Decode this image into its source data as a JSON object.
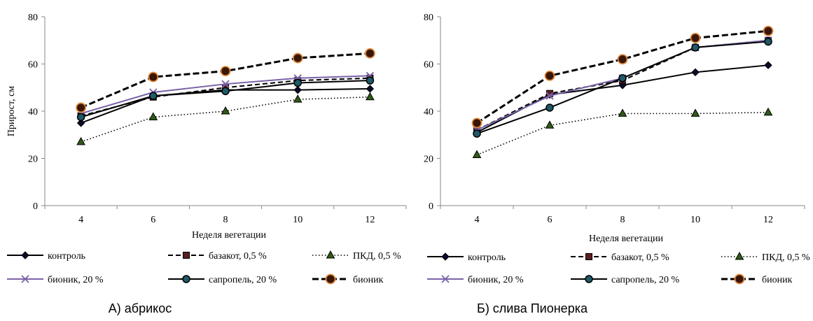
{
  "chart_data": [
    {
      "type": "line",
      "caption": "А) абрикос",
      "xlabel": "Неделя вегетации",
      "ylabel": "Прирост, см",
      "x": [
        4,
        6,
        8,
        10,
        12
      ],
      "ylim": [
        0,
        80
      ],
      "yticks": [
        0,
        20,
        40,
        60,
        80
      ],
      "grid": false,
      "legend": "bottom",
      "series": [
        {
          "name": "контроль",
          "values": [
            35,
            46.5,
            49,
            49,
            49.5
          ],
          "color": "#000000",
          "dash": "solid",
          "marker": "diamond"
        },
        {
          "name": "базакот, 0,5 %",
          "values": [
            38,
            46,
            50,
            53,
            54
          ],
          "color": "#000000",
          "dash": "dash",
          "marker": "square"
        },
        {
          "name": "ПКД, 0,5 %",
          "values": [
            27,
            37.5,
            40,
            45,
            46
          ],
          "color": "#000000",
          "dash": "dot",
          "marker": "triangle"
        },
        {
          "name": "бионик, 20 %",
          "values": [
            39,
            48,
            51.5,
            54,
            55
          ],
          "color": "#7a62a8",
          "dash": "solid",
          "marker": "x"
        },
        {
          "name": "сапропель, 20 %",
          "values": [
            37.5,
            46.5,
            48.5,
            52,
            53
          ],
          "color": "#000000",
          "dash": "solid",
          "marker": "circle"
        },
        {
          "name": "бионик",
          "values": [
            41.5,
            54.5,
            57,
            62.5,
            64.5
          ],
          "color": "#000000",
          "dash": "longdash",
          "marker": "bigcircle"
        }
      ]
    },
    {
      "type": "line",
      "caption": "Б) слива Пионерка",
      "xlabel": "Неделя вегетации",
      "ylabel": "",
      "x": [
        4,
        6,
        8,
        10,
        12
      ],
      "ylim": [
        0,
        80
      ],
      "yticks": [
        0,
        20,
        40,
        60,
        80
      ],
      "grid": false,
      "legend": "bottom",
      "series": [
        {
          "name": "контроль",
          "values": [
            31,
            47,
            51,
            56.5,
            59.5
          ],
          "color": "#000000",
          "dash": "solid",
          "marker": "diamond"
        },
        {
          "name": "базакот, 0,5 %",
          "values": [
            32,
            47.5,
            53,
            67,
            70
          ],
          "color": "#000000",
          "dash": "dash",
          "marker": "square"
        },
        {
          "name": "ПКД, 0,5 %",
          "values": [
            21.5,
            34,
            39,
            39,
            39.5
          ],
          "color": "#000000",
          "dash": "dot",
          "marker": "triangle"
        },
        {
          "name": "бионик, 20 %",
          "values": [
            32,
            46.5,
            54,
            67,
            70
          ],
          "color": "#7a62a8",
          "dash": "solid",
          "marker": "x"
        },
        {
          "name": "сапропель, 20 %",
          "values": [
            30.5,
            41.5,
            54,
            67,
            69.5
          ],
          "color": "#000000",
          "dash": "solid",
          "marker": "circle"
        },
        {
          "name": "бионик",
          "values": [
            35,
            55,
            62,
            71,
            74
          ],
          "color": "#000000",
          "dash": "longdash",
          "marker": "bigcircle"
        }
      ]
    }
  ]
}
